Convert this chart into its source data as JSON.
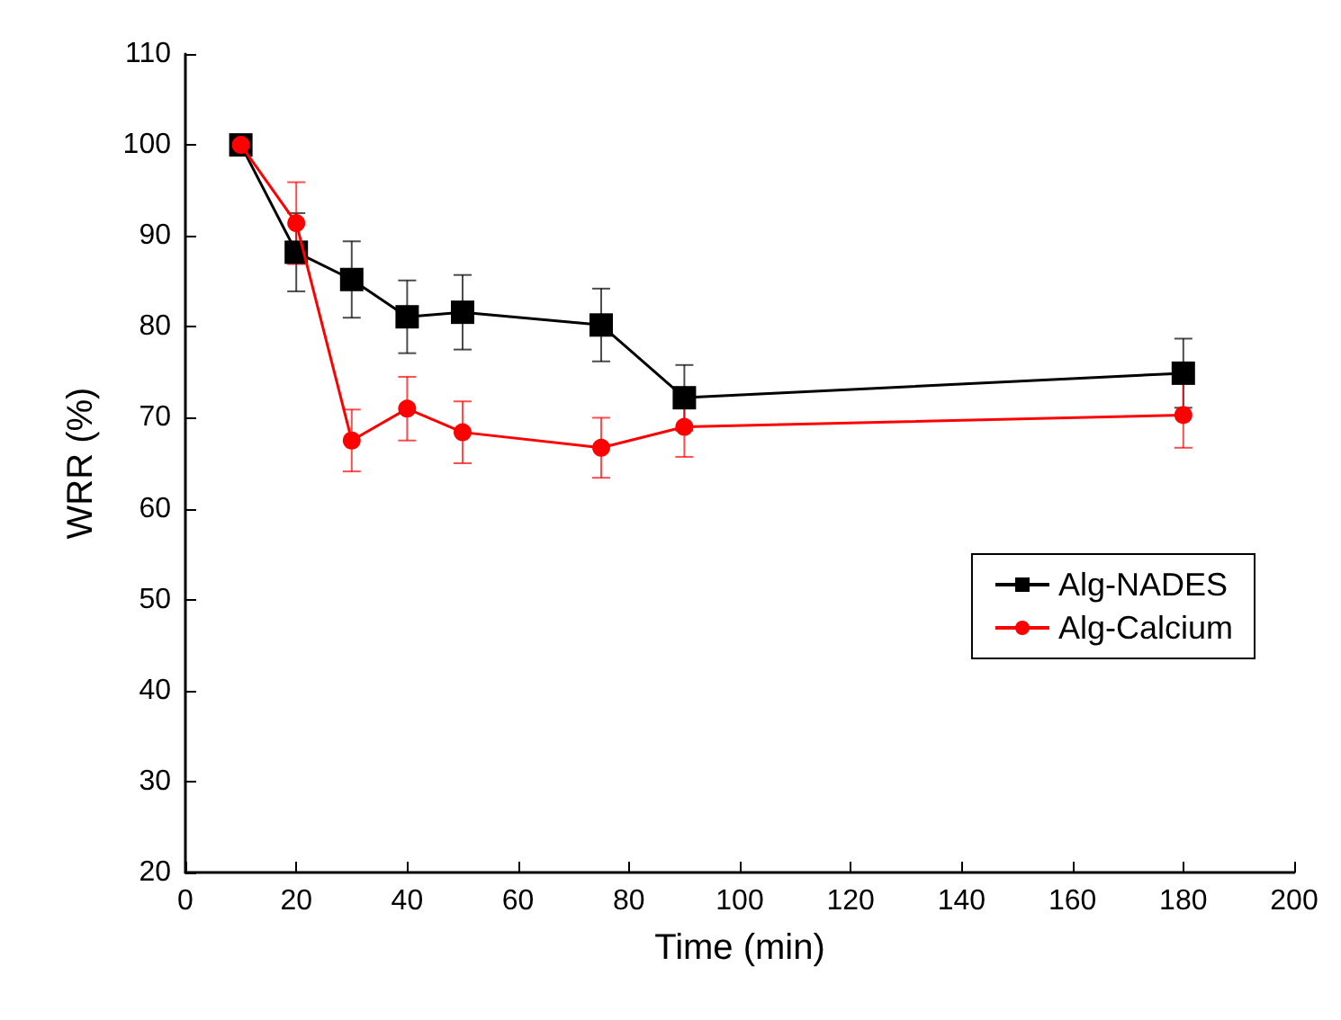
{
  "chart_data": {
    "type": "line",
    "xlabel": "Time (min)",
    "ylabel": "WRR (%)",
    "x": [
      10,
      20,
      30,
      40,
      50,
      75,
      90,
      180
    ],
    "series": [
      {
        "name": "Alg-NADES",
        "color": "#000000",
        "marker": "square",
        "values": [
          100,
          88.2,
          85.2,
          81.1,
          81.6,
          80.2,
          72.2,
          74.9
        ],
        "errors": [
          null,
          4.3,
          4.2,
          4,
          4.1,
          4,
          3.6,
          3.8
        ]
      },
      {
        "name": "Alg-Calcium",
        "color": "#ff0000",
        "marker": "circle",
        "values": [
          100,
          91.4,
          67.5,
          71,
          68.4,
          66.7,
          69,
          70.3
        ],
        "errors": [
          null,
          4.5,
          3.4,
          3.5,
          3.4,
          3.3,
          3.3,
          3.6
        ]
      }
    ],
    "xlim": [
      0,
      200
    ],
    "xticks": [
      0,
      20,
      40,
      60,
      80,
      100,
      120,
      140,
      160,
      180,
      200
    ],
    "ylim": [
      20,
      110
    ],
    "yticks": [
      20,
      30,
      40,
      50,
      60,
      70,
      80,
      90,
      100,
      110
    ],
    "grid": false,
    "legend": "right",
    "line_style": "solid"
  }
}
